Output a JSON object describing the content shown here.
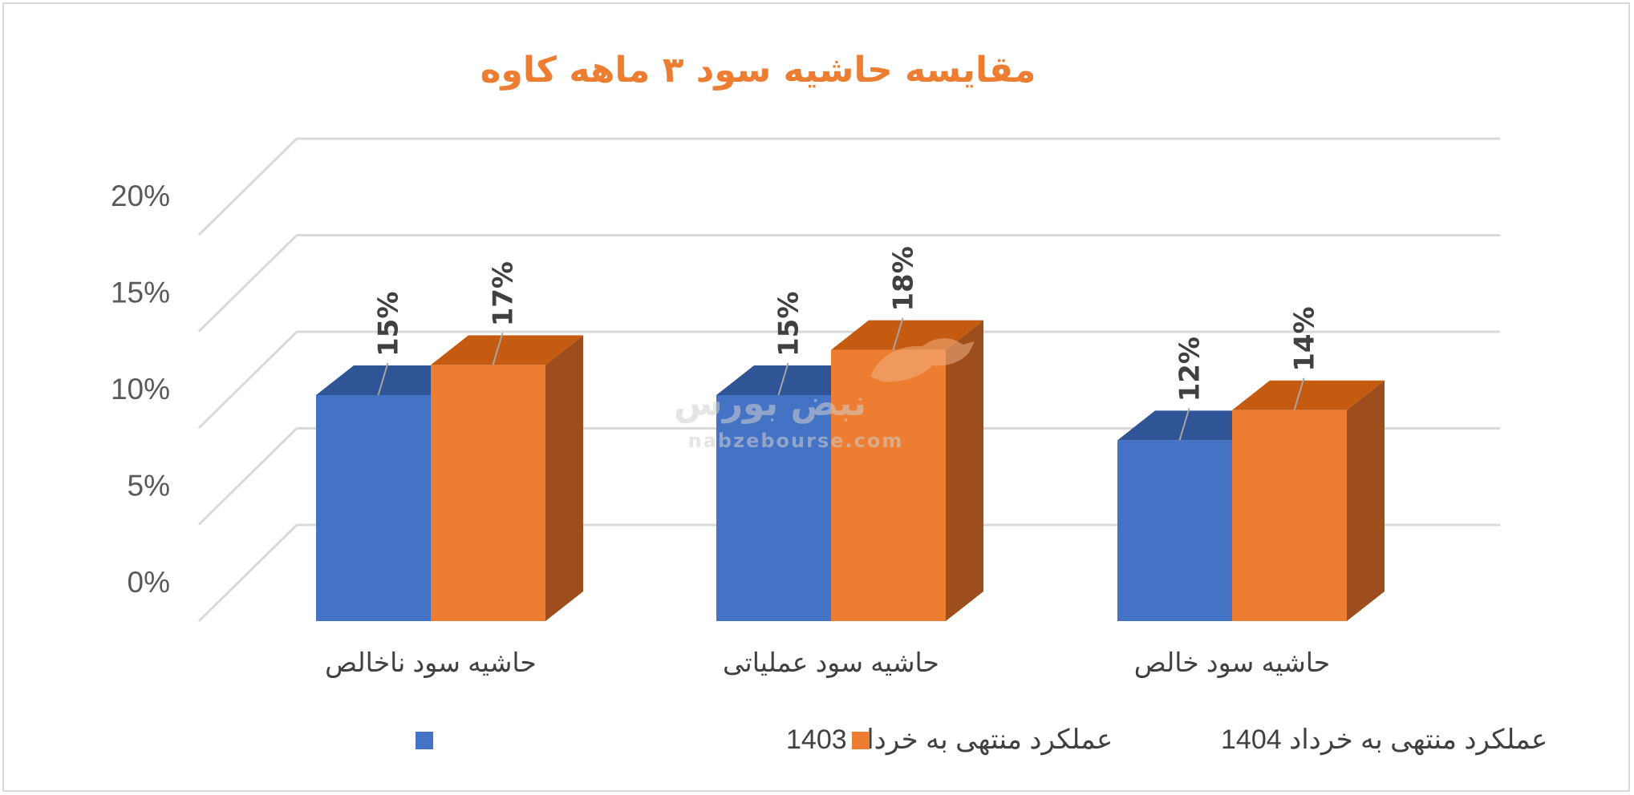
{
  "chart_data": {
    "type": "bar",
    "title": "مقایسه حاشیه سود ۳ ماهه کاوه",
    "categories": [
      "حاشیه سود ناخالص",
      "حاشیه سود عملیاتی",
      "حاشیه سود خالص"
    ],
    "series": [
      {
        "name": "عملکرد منتهی به خرداد 1403",
        "values": [
          15,
          15,
          12
        ],
        "labels": [
          "15%",
          "15%",
          "12%"
        ],
        "color": "#4472c4",
        "top_color": "#2f5597",
        "side_color": "#2f5597"
      },
      {
        "name": "عملکرد منتهی به خرداد 1404",
        "values": [
          17,
          18,
          14
        ],
        "labels": [
          "17%",
          "18%",
          "14%"
        ],
        "color": "#ed7d31",
        "top_color": "#c55a11",
        "side_color": "#9e4e1c"
      }
    ],
    "ylim": [
      0,
      20
    ],
    "yticks": [
      "0%",
      "5%",
      "10%",
      "15%",
      "20%"
    ],
    "grid": true,
    "legend_position": "bottom",
    "style": "3d-column"
  },
  "watermark": {
    "logo_text": "نبض بورس",
    "url": "nabzebourse.com"
  }
}
